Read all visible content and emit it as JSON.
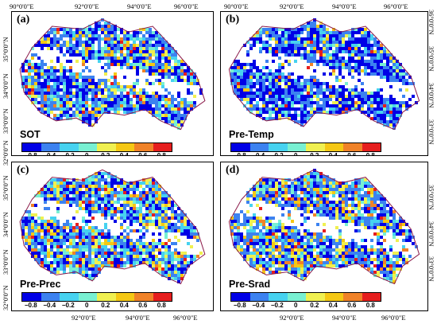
{
  "top_lon_labels": [
    "90°0'0\"E",
    "92°0'0\"E",
    "94°0'0\"E",
    "96°0'0\"E",
    "90°0'0\"E",
    "92°0'0\"E",
    "94°0'0\"E",
    "96°0'0\"E"
  ],
  "bottom_lon_labels": [
    "92°0'0\"E",
    "94°0'0\"E",
    "96°0'0\"E",
    "92°0'0\"E",
    "94°0'0\"E",
    "96°0'0\"E"
  ],
  "left_lat_labels": [
    "35°0'0\"N",
    "34°0'0\"N",
    "33°0'0\"N",
    "32°0'0\"N",
    "35°0'0\"N",
    "34°0'0\"N",
    "33°0'0\"N",
    "32°0'0\"N"
  ],
  "right_lat_labels": [
    "36°0'0\"N",
    "35°0'0\"N",
    "34°0'0\"N",
    "33°0'0\"N",
    "35°0'0\"N",
    "34°0'0\"N",
    "33°0'0\"N"
  ],
  "panels": [
    {
      "letter": "(a)",
      "name": "SOT"
    },
    {
      "letter": "(b)",
      "name": "Pre-Temp"
    },
    {
      "letter": "(c)",
      "name": "Pre-Prec"
    },
    {
      "letter": "(d)",
      "name": "Pre-Srad"
    }
  ],
  "colorbar": {
    "ticks": [
      "−0.8",
      "−0.4",
      "−0.2",
      "0",
      "0.2",
      "0.4",
      "0.6",
      "0.8"
    ],
    "colors": [
      "#0000e6",
      "#3c82f0",
      "#46d2f0",
      "#78f0d2",
      "#f0f050",
      "#f5c814",
      "#f08228",
      "#e61e1e"
    ]
  },
  "boundary_color": "#8b1a4a"
}
